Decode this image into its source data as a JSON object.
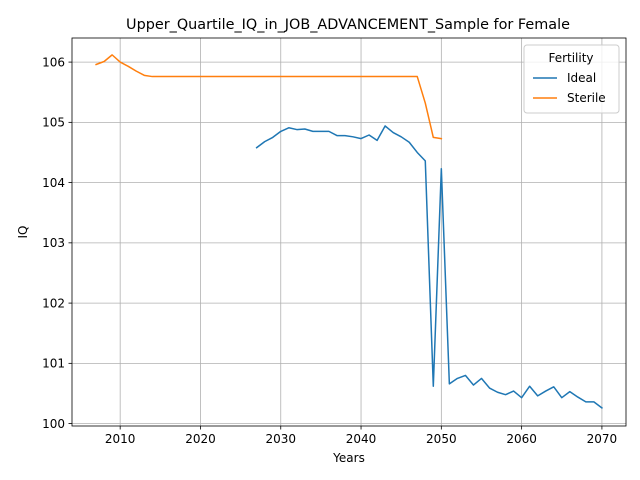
{
  "chart_data": {
    "type": "line",
    "title": "Upper_Quartile_IQ_in_JOB_ADVANCEMENT_Sample for Female",
    "xlabel": "Years",
    "ylabel": "IQ",
    "xlim": [
      2004,
      2073
    ],
    "ylim": [
      99.96,
      106.4
    ],
    "xticks": [
      2010,
      2020,
      2030,
      2040,
      2050,
      2060,
      2070
    ],
    "yticks": [
      100,
      101,
      102,
      103,
      104,
      105,
      106
    ],
    "grid": true,
    "legend": {
      "title": "Fertility",
      "position": "top-right"
    },
    "series": [
      {
        "name": "Ideal",
        "color": "#1f77b4",
        "x": [
          2027,
          2028,
          2029,
          2030,
          2031,
          2032,
          2033,
          2034,
          2035,
          2036,
          2037,
          2038,
          2039,
          2040,
          2041,
          2042,
          2043,
          2044,
          2045,
          2046,
          2047,
          2048,
          2049,
          2050,
          2051,
          2052,
          2053,
          2054,
          2055,
          2056,
          2057,
          2058,
          2059,
          2060,
          2061,
          2062,
          2063,
          2064,
          2065,
          2066,
          2067,
          2068,
          2069,
          2070
        ],
        "y": [
          104.58,
          104.68,
          104.75,
          104.85,
          104.91,
          104.88,
          104.89,
          104.85,
          104.85,
          104.85,
          104.78,
          104.78,
          104.76,
          104.73,
          104.79,
          104.7,
          104.94,
          104.83,
          104.76,
          104.67,
          104.5,
          104.36,
          100.62,
          104.23,
          100.66,
          100.75,
          100.8,
          100.64,
          100.75,
          100.59,
          100.52,
          100.48,
          100.54,
          100.43,
          100.62,
          100.46,
          100.54,
          100.61,
          100.43,
          100.53,
          100.44,
          100.36,
          100.36,
          100.26
        ]
      },
      {
        "name": "Sterile",
        "color": "#ff7f0e",
        "x": [
          2007,
          2008,
          2009,
          2010,
          2011,
          2012,
          2013,
          2014,
          2015,
          2016,
          2017,
          2018,
          2019,
          2020,
          2021,
          2022,
          2023,
          2024,
          2025,
          2026,
          2027,
          2028,
          2029,
          2030,
          2031,
          2032,
          2033,
          2034,
          2035,
          2036,
          2037,
          2038,
          2039,
          2040,
          2041,
          2042,
          2043,
          2044,
          2045,
          2046,
          2047,
          2048,
          2049,
          2050
        ],
        "y": [
          105.96,
          106.01,
          106.12,
          106.0,
          105.93,
          105.85,
          105.78,
          105.76,
          105.76,
          105.76,
          105.76,
          105.76,
          105.76,
          105.76,
          105.76,
          105.76,
          105.76,
          105.76,
          105.76,
          105.76,
          105.76,
          105.76,
          105.76,
          105.76,
          105.76,
          105.76,
          105.76,
          105.76,
          105.76,
          105.76,
          105.76,
          105.76,
          105.76,
          105.76,
          105.76,
          105.76,
          105.76,
          105.76,
          105.76,
          105.76,
          105.76,
          105.32,
          104.75,
          104.73
        ]
      }
    ]
  }
}
